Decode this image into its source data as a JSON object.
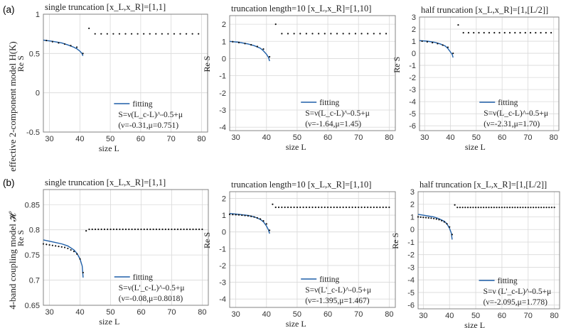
{
  "figure": {
    "row_labels": [
      {
        "tag": "(a)",
        "text": "effective 2-component model H(K)"
      },
      {
        "tag": "(b)",
        "text": "4-band coupling model 𝓗"
      }
    ]
  },
  "colors": {
    "fit_line": "#1f5fa8",
    "dots": "#111111",
    "grid": "#d9d9d9",
    "axis": "#777777"
  },
  "chart_data": [
    {
      "type": "line",
      "title": "single truncation   [x_L,x_R]=[1,1]",
      "xlabel": "size L",
      "ylabel": "Re S",
      "xlim": [
        28,
        82
      ],
      "ylim": [
        -0.5,
        1
      ],
      "xticks": [
        30,
        40,
        50,
        60,
        70,
        80
      ],
      "yticks": [
        -0.5,
        0,
        0.5,
        1
      ],
      "legend": "bottom-right",
      "series": [
        {
          "name": "fitting",
          "kind": "line",
          "x": [
            28,
            31,
            34,
            36,
            38,
            39,
            40,
            40.7,
            41
          ],
          "y": [
            0.67,
            0.655,
            0.635,
            0.61,
            0.58,
            0.56,
            0.53,
            0.5,
            0.47
          ]
        },
        {
          "kind": "dots",
          "x": [
            29,
            31,
            33,
            35,
            37,
            39,
            41
          ],
          "y": [
            0.665,
            0.65,
            0.635,
            0.62,
            0.6,
            0.58,
            0.5
          ]
        },
        {
          "kind": "dots",
          "x_start": 43,
          "x_end": 79,
          "x_step": 2,
          "y_first": 0.82,
          "y_rest": 0.75
        }
      ],
      "legend_text": [
        "fitting",
        "S=ν(L_c-L)^-0.5+μ",
        "(ν=-0.31,μ=0.751)"
      ]
    },
    {
      "type": "line",
      "title": "truncation length=10   [x_L,x_R]=[1,10]",
      "xlabel": "size L",
      "ylabel": "Re S",
      "xlim": [
        28,
        82
      ],
      "ylim": [
        -4.2,
        2.5
      ],
      "xticks": [
        30,
        40,
        50,
        60,
        70,
        80
      ],
      "yticks": [
        -4,
        -3,
        -2,
        -1,
        0,
        1,
        2
      ],
      "legend": "bottom-right",
      "series": [
        {
          "name": "fitting",
          "kind": "line",
          "x": [
            28,
            31,
            34,
            36,
            38,
            39,
            40,
            40.7,
            41
          ],
          "y": [
            1.0,
            0.95,
            0.85,
            0.75,
            0.6,
            0.45,
            0.25,
            0.05,
            -0.15
          ]
        },
        {
          "kind": "dots",
          "x": [
            29,
            31,
            33,
            35,
            37,
            39,
            41
          ],
          "y": [
            0.98,
            0.93,
            0.87,
            0.8,
            0.7,
            0.55,
            0.1
          ]
        },
        {
          "kind": "dots",
          "x_start": 43,
          "x_end": 79,
          "x_step": 2,
          "y_first": 2.0,
          "y_rest": 1.45
        }
      ],
      "legend_text": [
        "fitting",
        "S=ν(L_c-L)^-0.5+μ",
        "(ν=-1.64,μ=1.45)"
      ]
    },
    {
      "type": "line",
      "title": "half truncation   [x_L,x_R]=[1,[L/2]]",
      "xlabel": "size L",
      "ylabel": "Re S",
      "xlim": [
        28,
        82
      ],
      "ylim": [
        -6.4,
        3
      ],
      "xticks": [
        30,
        40,
        50,
        60,
        70,
        80
      ],
      "yticks": [
        -6,
        -5,
        -4,
        -3,
        -2,
        -1,
        0,
        1,
        2,
        3
      ],
      "legend": "bottom-right",
      "series": [
        {
          "name": "fitting",
          "kind": "line",
          "x": [
            28,
            31,
            34,
            36,
            38,
            39,
            40,
            40.7,
            41
          ],
          "y": [
            1.05,
            1.0,
            0.9,
            0.78,
            0.6,
            0.4,
            0.1,
            -0.1,
            -0.35
          ]
        },
        {
          "kind": "dots",
          "x": [
            29,
            31,
            33,
            35,
            37,
            39,
            41
          ],
          "y": [
            1.0,
            0.95,
            0.88,
            0.8,
            0.68,
            0.5,
            0.0
          ]
        },
        {
          "kind": "dots",
          "x_start": 43,
          "x_end": 79,
          "x_step": 2,
          "y_first": 2.35,
          "y_rest": 1.7
        }
      ],
      "legend_text": [
        "fitting",
        "S=ν(L_c-L)^-0.5+μ",
        "(ν=-2.31,μ=1.70)"
      ]
    },
    {
      "type": "line",
      "title": "single truncation   [x_L,x_R]=[1,1]",
      "xlabel": "size L",
      "ylabel": "Re S",
      "xlim": [
        28,
        82
      ],
      "ylim": [
        0.65,
        0.88
      ],
      "xticks": [
        30,
        40,
        50,
        60,
        70,
        80
      ],
      "yticks": [
        0.65,
        0.7,
        0.75,
        0.8,
        0.85
      ],
      "legend": "bottom-right",
      "series": [
        {
          "name": "fitting",
          "kind": "line",
          "x": [
            28,
            31,
            34,
            36,
            38,
            39,
            40,
            40.7,
            41
          ],
          "y": [
            0.78,
            0.776,
            0.772,
            0.768,
            0.76,
            0.753,
            0.742,
            0.728,
            0.705
          ]
        },
        {
          "kind": "dots",
          "x": [
            28,
            29,
            30,
            31,
            32,
            33,
            34,
            35,
            36,
            37,
            38,
            39,
            40,
            41
          ],
          "y": [
            0.772,
            0.771,
            0.77,
            0.769,
            0.768,
            0.767,
            0.766,
            0.765,
            0.763,
            0.76,
            0.757,
            0.752,
            0.742,
            0.715
          ]
        },
        {
          "kind": "dots",
          "x_start": 42,
          "x_end": 80,
          "x_step": 1,
          "y_first": 0.798,
          "y_rest": 0.801
        }
      ],
      "legend_text": [
        "fitting",
        "S=ν(L'_c-L)^-0.5+μ",
        "(ν=-0.08,μ=0.8018)"
      ]
    },
    {
      "type": "line",
      "title": "truncation length=10   [x_L,x_R]=[1,10]",
      "xlabel": "size L",
      "ylabel": "Re S",
      "xlim": [
        28,
        82
      ],
      "ylim": [
        -4.5,
        2.4
      ],
      "xticks": [
        30,
        40,
        50,
        60,
        70,
        80
      ],
      "yticks": [
        -4,
        -3,
        -2,
        -1,
        0,
        1,
        2
      ],
      "legend": "bottom-right",
      "series": [
        {
          "name": "fitting",
          "kind": "line",
          "x": [
            28,
            31,
            34,
            36,
            38,
            39,
            40,
            40.7,
            41
          ],
          "y": [
            1.1,
            1.05,
            0.98,
            0.9,
            0.75,
            0.6,
            0.35,
            0.1,
            -0.1
          ]
        },
        {
          "kind": "dots",
          "x": [
            28,
            29,
            30,
            31,
            32,
            33,
            34,
            35,
            36,
            37,
            38,
            39,
            40,
            41
          ],
          "y": [
            1.05,
            1.04,
            1.03,
            1.02,
            1.0,
            0.98,
            0.96,
            0.93,
            0.89,
            0.84,
            0.77,
            0.66,
            0.48,
            0.1
          ]
        },
        {
          "kind": "dots",
          "x_start": 42,
          "x_end": 80,
          "x_step": 1,
          "y_first": 1.65,
          "y_rest": 1.47
        }
      ],
      "legend_text": [
        "fitting",
        "S=ν(L'_c-L)^-0.5+μ",
        "(ν=-1.395,μ=1.467)"
      ]
    },
    {
      "type": "line",
      "title": "half truncation   [x_L,x_R]=[1,[L/2]]",
      "xlabel": "size L",
      "ylabel": "Re S",
      "xlim": [
        28,
        82
      ],
      "ylim": [
        -6.3,
        3
      ],
      "xticks": [
        30,
        40,
        50,
        60,
        70,
        80
      ],
      "yticks": [
        -6,
        -5,
        -4,
        -3,
        -2,
        -1,
        0,
        1,
        2,
        3
      ],
      "legend": "bottom-right",
      "series": [
        {
          "name": "fitting",
          "kind": "line",
          "x": [
            28,
            31,
            34,
            36,
            38,
            39,
            40,
            40.7,
            41
          ],
          "y": [
            1.2,
            1.1,
            1.0,
            0.85,
            0.65,
            0.45,
            0.1,
            -0.3,
            -0.8
          ]
        },
        {
          "kind": "dots",
          "x": [
            28,
            29,
            30,
            31,
            32,
            33,
            34,
            35,
            36,
            37,
            38,
            39,
            40,
            41
          ],
          "y": [
            1.0,
            0.98,
            0.96,
            0.94,
            0.92,
            0.9,
            0.87,
            0.83,
            0.78,
            0.7,
            0.6,
            0.45,
            0.2,
            -0.4
          ]
        },
        {
          "kind": "dots",
          "x_start": 42,
          "x_end": 80,
          "x_step": 1,
          "y_first": 1.95,
          "y_rest": 1.75
        }
      ],
      "legend_text": [
        "fitting",
        "S=ν (L'_c-L)^-0.5+μ",
        "(ν=-2.095,μ=1.778)"
      ]
    }
  ]
}
